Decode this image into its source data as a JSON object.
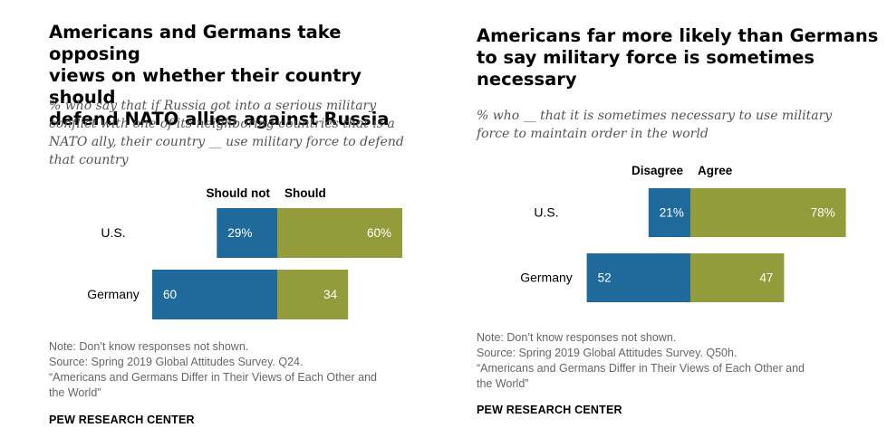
{
  "charts": [
    {
      "title_lines": [
        "Americans and Germans take opposing",
        "views on whether their country should",
        "defend NATO allies against Russia"
      ],
      "subtitle_lines": [
        "% who say that if Russia got into a serious military",
        "conflict with one of its neighboring countries that is a",
        "NATO ally, their country __ use military force to defend",
        "that country"
      ],
      "note_lines": [
        "Note: Don’t know responses not shown.",
        "Source: Spring 2019 Global Attitudes Survey. Q24.",
        "“Americans and Germans Differ in Their Views of Each Other and",
        "the World”"
      ],
      "brand": "PEW RESEARCH CENTER"
    },
    {
      "title_lines": [
        "Americans far more likely than Germans",
        "to say military force is sometimes",
        "necessary"
      ],
      "subtitle_lines": [
        "% who __ that it is sometimes necessary to use military",
        "force to maintain order in the world"
      ],
      "note_lines": [
        "Note: Don’t know responses not shown.",
        "Source: Spring 2019 Global Attitudes Survey. Q50h.",
        "“Americans and Germans Differ in Their Views of Each Other and",
        "the World”"
      ],
      "brand": "PEW RESEARCH CENTER"
    }
  ],
  "colors": {
    "negative": "#206a9b",
    "positive": "#939b3a",
    "label_on_bar": "#ffffff"
  },
  "chart_data": [
    {
      "type": "bar",
      "orientation": "horizontal-diverging-stacked",
      "categories": [
        "U.S.",
        "Germany"
      ],
      "series": [
        {
          "name": "Should not",
          "values": [
            29,
            60
          ],
          "labels": [
            "29%",
            "60"
          ]
        },
        {
          "name": "Should",
          "values": [
            60,
            34
          ],
          "labels": [
            "60%",
            "34"
          ]
        }
      ]
    },
    {
      "type": "bar",
      "orientation": "horizontal-diverging-stacked",
      "categories": [
        "U.S.",
        "Germany"
      ],
      "series": [
        {
          "name": "Disagree",
          "values": [
            21,
            52
          ],
          "labels": [
            "21%",
            "52"
          ]
        },
        {
          "name": "Agree",
          "values": [
            78,
            47
          ],
          "labels": [
            "78%",
            "47"
          ]
        }
      ]
    }
  ]
}
